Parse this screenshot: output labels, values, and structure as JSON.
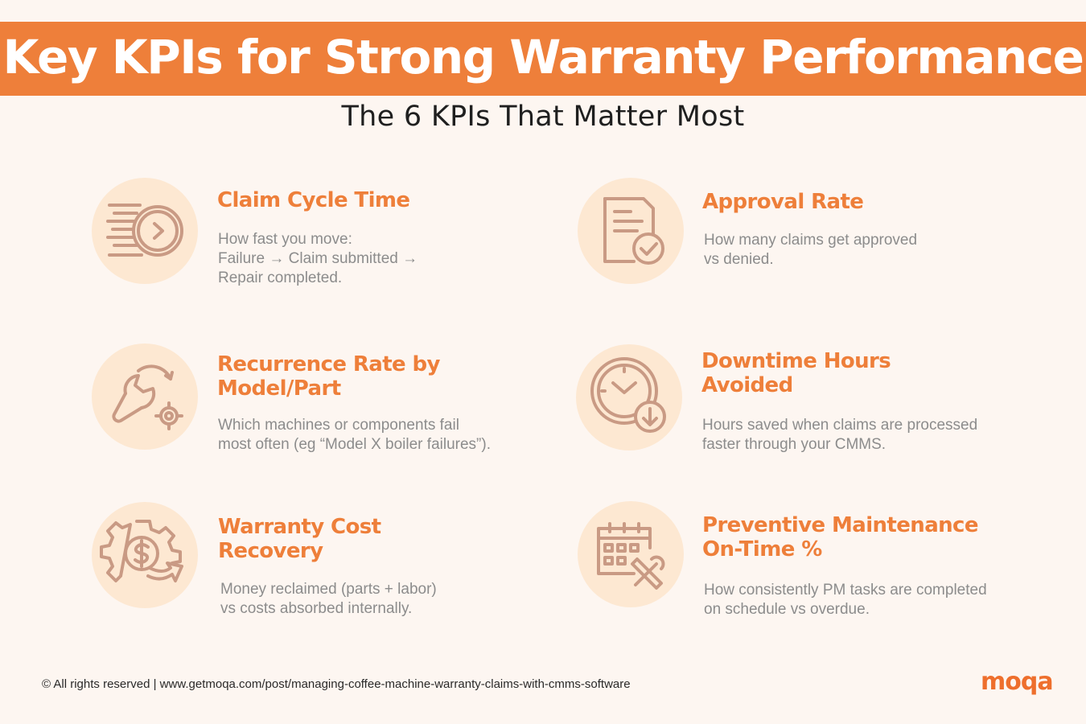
{
  "header": {
    "title": "Key KPIs for Strong Warranty Performance",
    "subtitle": "The 6 KPIs That Matter Most"
  },
  "kpis": [
    {
      "title": "Claim Cycle Time",
      "desc": "How fast you move:\nFailure → Claim submitted →\nRepair completed.",
      "icon": "fast-clock-icon"
    },
    {
      "title": "Approval Rate",
      "desc": "How many claims get approved\nvs denied.",
      "icon": "document-check-icon"
    },
    {
      "title": "Recurrence Rate by\nModel/Part",
      "desc": "Which machines or components fail\nmost often (eg “Model X boiler failures”).",
      "icon": "wrench-gear-icon"
    },
    {
      "title": "Downtime Hours\nAvoided",
      "desc": "Hours saved when claims are processed\nfaster through your CMMS.",
      "icon": "clock-download-icon"
    },
    {
      "title": "Warranty Cost\nRecovery",
      "desc": "Money reclaimed (parts + labor)\nvs costs absorbed internally.",
      "icon": "gear-dollar-icon"
    },
    {
      "title": "Preventive Maintenance\nOn-Time %",
      "desc": "How consistently PM tasks are completed\non schedule vs overdue.",
      "icon": "calendar-tools-icon"
    }
  ],
  "footer": {
    "text": "© All rights reserved | www.getmoqa.com/post/managing-coffee-machine-warranty-claims-with-cmms-software",
    "logo": "moqa"
  },
  "colors": {
    "accent": "#ee7f3a",
    "background": "#fdf6f1",
    "icon_circle": "#fde8d2",
    "icon_stroke": "#c99a84"
  }
}
